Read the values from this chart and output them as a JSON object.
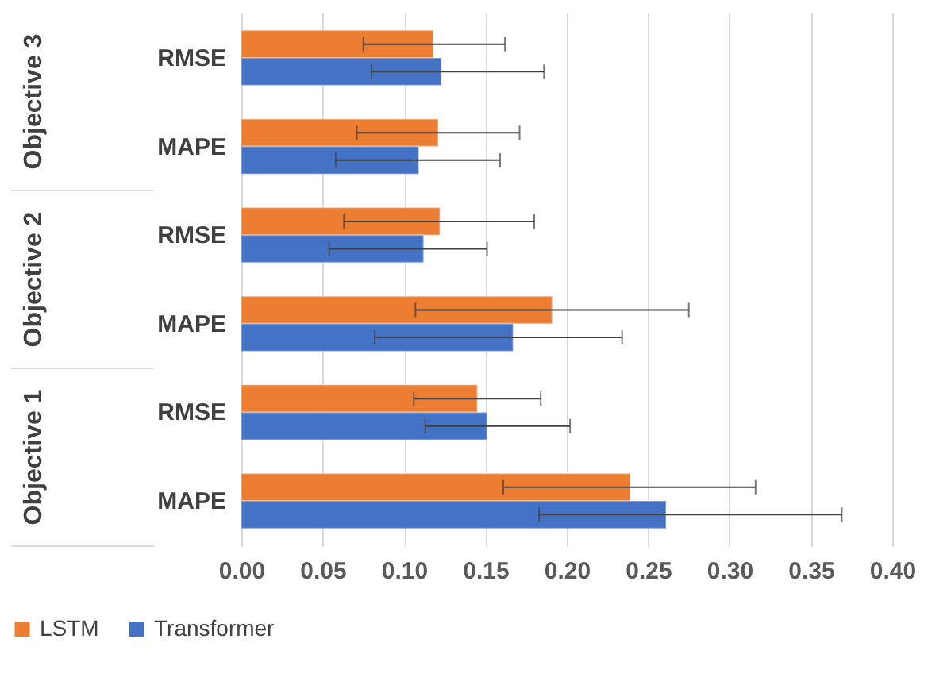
{
  "chart_data": {
    "type": "bar",
    "orientation": "horizontal",
    "categories": [
      "RMSE",
      "MAPE",
      "RMSE",
      "MAPE",
      "RMSE",
      "MAPE"
    ],
    "annotations": [
      "Objective 3",
      "Objective 2",
      "Objective 1"
    ],
    "series": [
      {
        "name": "LSTM",
        "color": "#ed7d31",
        "values": [
          0.118,
          0.121,
          0.122,
          0.191,
          0.145,
          0.239
        ],
        "errors": [
          [
            0.075,
            0.162
          ],
          [
            0.071,
            0.171
          ],
          [
            0.063,
            0.18
          ],
          [
            0.107,
            0.275
          ],
          [
            0.106,
            0.184
          ],
          [
            0.161,
            0.316
          ]
        ]
      },
      {
        "name": "Transformer",
        "color": "#4472c4",
        "values": [
          0.123,
          0.109,
          0.112,
          0.167,
          0.151,
          0.261
        ],
        "errors": [
          [
            0.08,
            0.186
          ],
          [
            0.058,
            0.159
          ],
          [
            0.054,
            0.151
          ],
          [
            0.082,
            0.234
          ],
          [
            0.113,
            0.202
          ],
          [
            0.183,
            0.369
          ]
        ]
      }
    ],
    "xlim": [
      0,
      0.4
    ],
    "xticks": [
      {
        "value": 0,
        "label": "0.00"
      },
      0.05,
      {
        "value": 0.1,
        "label": "0.10"
      },
      0.15,
      {
        "value": 0.2,
        "label": "0.20"
      },
      0.25,
      {
        "value": 0.3,
        "label": "0.30"
      },
      0.35,
      {
        "value": 0.4,
        "label": "0.40"
      }
    ],
    "grid": "x",
    "legend": "bottom"
  }
}
